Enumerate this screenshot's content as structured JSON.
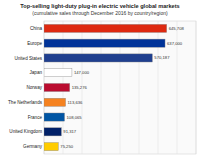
{
  "chart_data": {
    "type": "bar",
    "orientation": "horizontal",
    "title": "Top-selling light-duty plug-in electric vehicle global markets",
    "subtitle": "(cumulative sales through December 2016 by country/region)",
    "categories": [
      "China",
      "Europe",
      "United States",
      "Japan",
      "Norway",
      "The Netherlands",
      "France",
      "United Kingdom",
      "Germany"
    ],
    "values": [
      645708,
      637000,
      570187,
      147000,
      135276,
      113636,
      108065,
      91317,
      75250
    ],
    "value_labels": [
      "645,708",
      "637,000",
      "570,187",
      "147,000",
      "135,276",
      "113,636",
      "108,065",
      "91,317",
      "75,250"
    ],
    "colors": [
      "#de2910",
      "#003399",
      "#1f3f8f",
      "#ffffff",
      "#ba0c2f",
      "#f58220",
      "#0055a4",
      "#012169",
      "#ffcc00"
    ],
    "xlim": [
      0,
      800000
    ],
    "xticks": [
      0,
      100000,
      200000,
      300000,
      400000,
      500000,
      600000,
      700000,
      800000
    ],
    "grid": true,
    "data_labels": true,
    "tick_labels": "y"
  }
}
